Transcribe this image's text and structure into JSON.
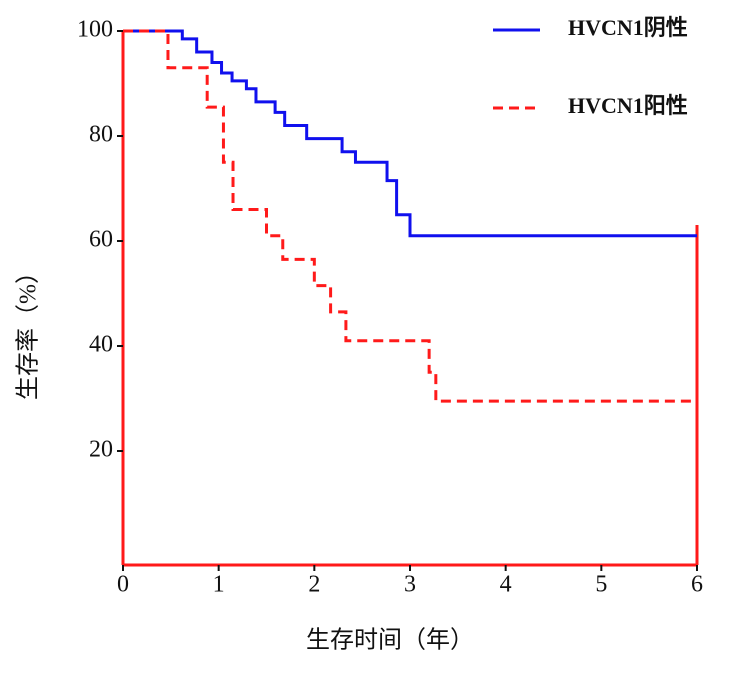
{
  "chart_data": {
    "type": "step",
    "xlabel": "生存时间（年）",
    "ylabel": "生存率（%）",
    "xlim": [
      0,
      6
    ],
    "xticks": [
      0,
      1,
      2,
      3,
      4,
      5,
      6
    ],
    "ylim": [
      0,
      100
    ],
    "yticks": [
      20,
      40,
      60,
      80,
      100
    ],
    "series": [
      {
        "name": "HVCN1阴性",
        "color": "#1010ee",
        "dash": false,
        "x": [
          0,
          0.62,
          0.77,
          0.93,
          1.03,
          1.14,
          1.29,
          1.39,
          1.59,
          1.69,
          1.92,
          2.29,
          2.43,
          2.76,
          2.86,
          3.0,
          6
        ],
        "values": [
          100,
          98.5,
          96,
          94,
          92,
          90.5,
          89,
          86.5,
          84.5,
          82,
          79.5,
          77,
          75,
          71.5,
          65,
          61,
          61
        ]
      },
      {
        "name": "HVCN1阳性",
        "color": "#ff1a1a",
        "dash": true,
        "x": [
          0,
          0.47,
          0.88,
          1.05,
          1.15,
          1.5,
          1.67,
          2.0,
          2.17,
          2.33,
          3.2,
          3.27,
          6
        ],
        "values": [
          100,
          93,
          85.5,
          75,
          66,
          61,
          56.5,
          51.5,
          46.5,
          41,
          35,
          29.5,
          29.5
        ]
      }
    ]
  }
}
